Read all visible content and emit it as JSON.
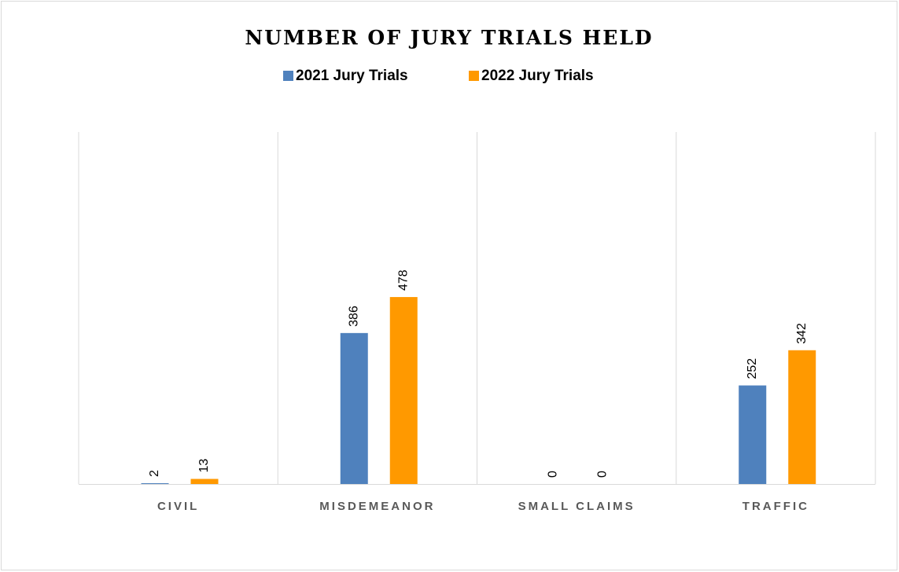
{
  "chart_data": {
    "type": "bar",
    "title": "NUMBER OF JURY TRIALS HELD",
    "categories": [
      "CIVIL",
      "MISDEMEANOR",
      "SMALL CLAIMS",
      "TRAFFIC"
    ],
    "series": [
      {
        "name": "2021 Jury Trials",
        "color": "#4f81bd",
        "values": [
          2,
          386,
          0,
          252
        ]
      },
      {
        "name": "2022 Jury Trials",
        "color": "#ff9900",
        "values": [
          13,
          478,
          0,
          342
        ]
      }
    ],
    "ylim": [
      0,
      900
    ],
    "legend": "top"
  }
}
